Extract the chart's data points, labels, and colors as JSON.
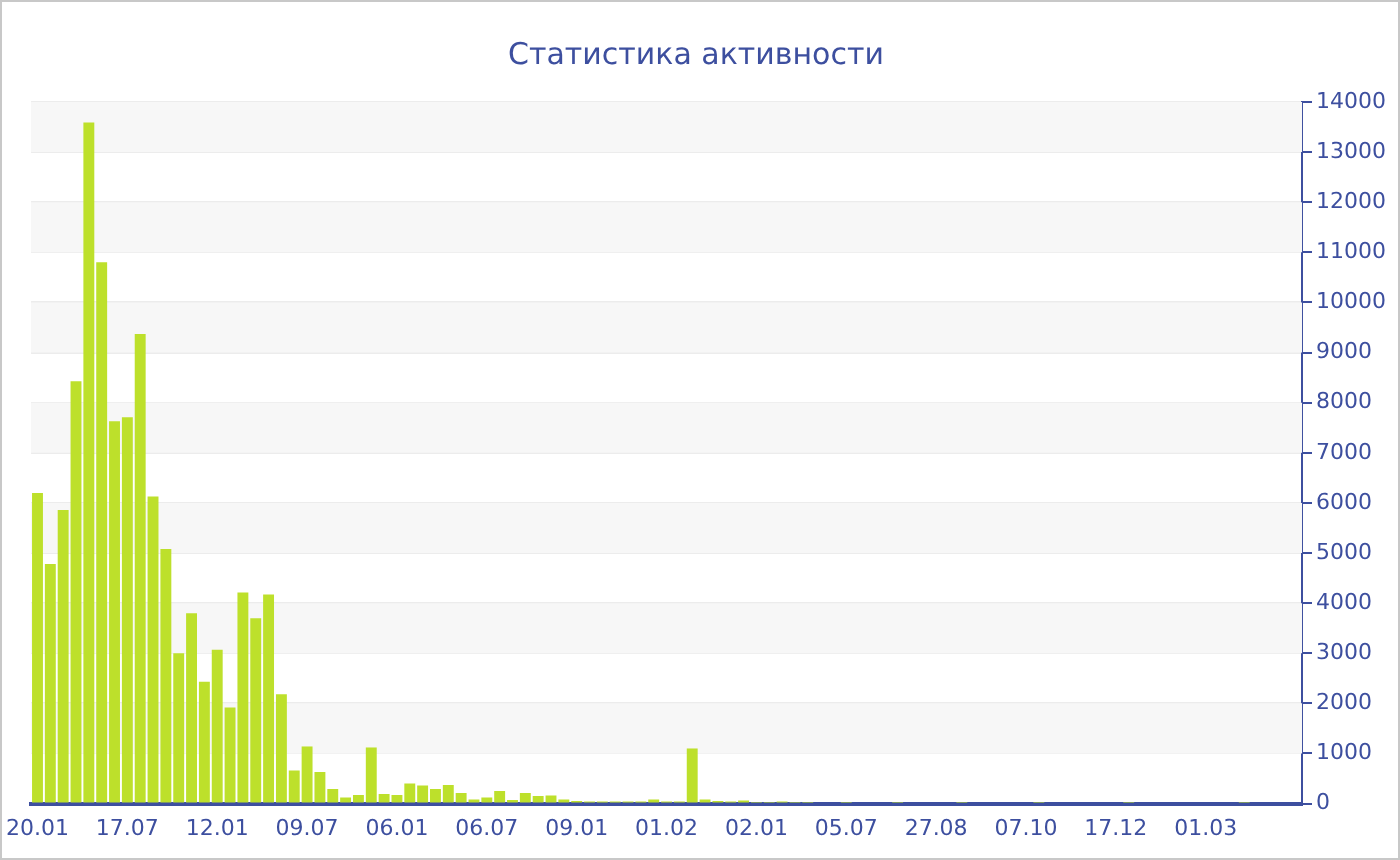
{
  "chart_data": {
    "type": "bar",
    "title": "Статистика активности",
    "categories": [
      "20.01",
      null,
      null,
      null,
      null,
      null,
      null,
      "17.07",
      null,
      null,
      null,
      null,
      null,
      null,
      "12.01",
      null,
      null,
      null,
      null,
      null,
      null,
      "09.07",
      null,
      null,
      null,
      null,
      null,
      null,
      "06.01",
      null,
      null,
      null,
      null,
      null,
      null,
      "06.07",
      null,
      null,
      null,
      null,
      null,
      null,
      "09.01",
      null,
      null,
      null,
      null,
      null,
      null,
      "01.02",
      null,
      null,
      null,
      null,
      null,
      null,
      "02.01",
      null,
      null,
      null,
      null,
      null,
      null,
      "05.07",
      null,
      null,
      null,
      null,
      null,
      null,
      "27.08",
      null,
      null,
      null,
      null,
      null,
      null,
      "07.10",
      null,
      null,
      null,
      null,
      null,
      null,
      "17.12",
      null,
      null,
      null,
      null,
      null,
      null,
      "01.03",
      null,
      null,
      null,
      null,
      null,
      null,
      null
    ],
    "values": [
      6200,
      4780,
      5860,
      8430,
      13590,
      10800,
      7630,
      7710,
      9370,
      6130,
      5080,
      3000,
      3800,
      2430,
      3070,
      1920,
      4210,
      3700,
      4170,
      2180,
      660,
      1140,
      630,
      290,
      120,
      170,
      1120,
      190,
      170,
      400,
      360,
      290,
      370,
      210,
      80,
      120,
      250,
      70,
      210,
      150,
      160,
      80,
      50,
      40,
      40,
      40,
      40,
      40,
      80,
      40,
      40,
      1100,
      80,
      50,
      40,
      60,
      30,
      30,
      40,
      30,
      30,
      20,
      20,
      30,
      20,
      20,
      20,
      30,
      20,
      20,
      20,
      20,
      30,
      20,
      20,
      20,
      20,
      20,
      30,
      20,
      20,
      20,
      20,
      20,
      20,
      30,
      20,
      20,
      20,
      20,
      20,
      20,
      20,
      20,
      30,
      20,
      20,
      20,
      20
    ],
    "color": "#bde02b",
    "ylim": [
      0,
      14000
    ],
    "yticks": [
      0,
      1000,
      2000,
      3000,
      4000,
      5000,
      6000,
      7000,
      8000,
      9000,
      10000,
      11000,
      12000,
      13000,
      14000
    ],
    "grid": "y",
    "legend": false
  }
}
